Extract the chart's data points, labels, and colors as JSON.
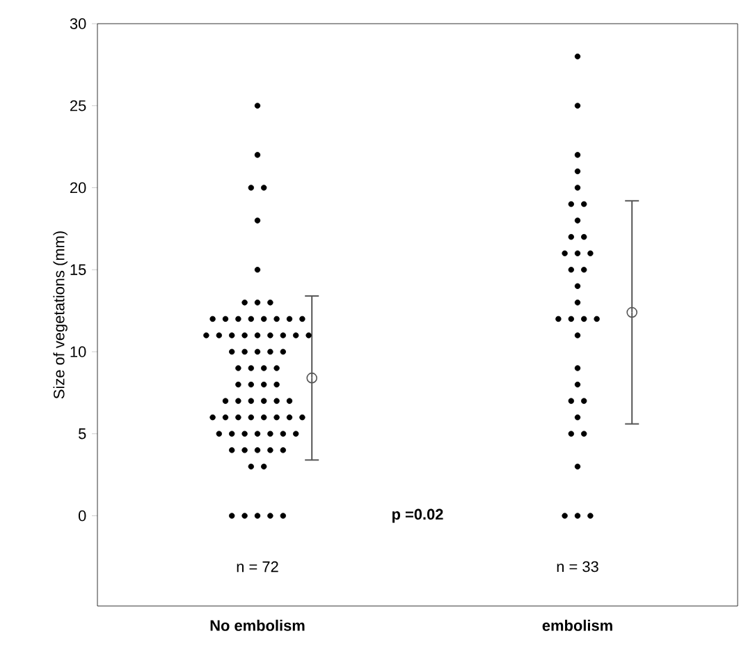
{
  "chart_data": {
    "type": "scatter",
    "ylabel": "Size of vegetations (mm)",
    "categories": [
      "No embolism",
      "embolism"
    ],
    "ylim": [
      -5.5,
      30
    ],
    "yticks": [
      0,
      5,
      10,
      15,
      20,
      25,
      30
    ],
    "grid": false,
    "marker": "circle",
    "annotations": [
      "p =0.02",
      "n = 72",
      "n = 33"
    ],
    "series": [
      {
        "color": "#000000",
        "x": [
          "No embolism",
          "No embolism",
          "No embolism",
          "No embolism",
          "No embolism",
          "No embolism",
          "No embolism",
          "No embolism",
          "No embolism",
          "No embolism",
          "No embolism",
          "No embolism",
          "No embolism",
          "No embolism",
          "No embolism",
          "No embolism",
          "No embolism",
          "No embolism",
          "No embolism",
          "No embolism",
          "No embolism",
          "No embolism",
          "No embolism",
          "No embolism",
          "No embolism",
          "No embolism",
          "No embolism",
          "No embolism",
          "No embolism",
          "No embolism",
          "No embolism",
          "No embolism",
          "No embolism",
          "No embolism",
          "No embolism",
          "No embolism",
          "No embolism",
          "No embolism",
          "No embolism",
          "No embolism",
          "No embolism",
          "No embolism",
          "No embolism",
          "No embolism",
          "No embolism",
          "No embolism",
          "No embolism",
          "No embolism",
          "No embolism",
          "No embolism",
          "No embolism",
          "No embolism",
          "No embolism",
          "No embolism",
          "No embolism",
          "No embolism",
          "No embolism",
          "No embolism",
          "No embolism",
          "No embolism",
          "No embolism",
          "No embolism",
          "No embolism",
          "No embolism",
          "No embolism",
          "No embolism",
          "No embolism",
          "No embolism",
          "No embolism",
          "No embolism",
          "No embolism",
          "No embolism"
        ],
        "values": [
          25,
          22,
          20,
          20,
          18,
          15,
          13,
          13,
          13,
          12,
          12,
          12,
          12,
          12,
          12,
          12,
          12,
          11,
          11,
          11,
          11,
          11,
          11,
          11,
          11,
          11,
          10,
          10,
          10,
          10,
          10,
          9,
          9,
          9,
          9,
          8,
          8,
          8,
          8,
          7,
          7,
          7,
          7,
          7,
          7,
          6,
          6,
          6,
          6,
          6,
          6,
          6,
          6,
          5,
          5,
          5,
          5,
          5,
          5,
          5,
          4,
          4,
          4,
          4,
          4,
          3,
          3,
          0,
          0,
          0,
          0,
          0
        ]
      },
      {
        "color": "#000000",
        "x": [
          "embolism",
          "embolism",
          "embolism",
          "embolism",
          "embolism",
          "embolism",
          "embolism",
          "embolism",
          "embolism",
          "embolism",
          "embolism",
          "embolism",
          "embolism",
          "embolism",
          "embolism",
          "embolism",
          "embolism",
          "embolism",
          "embolism",
          "embolism",
          "embolism",
          "embolism",
          "embolism",
          "embolism",
          "embolism",
          "embolism",
          "embolism",
          "embolism",
          "embolism",
          "embolism",
          "embolism",
          "embolism",
          "embolism"
        ],
        "values": [
          28,
          25,
          22,
          21,
          20,
          19,
          19,
          18,
          17,
          17,
          16,
          16,
          16,
          15,
          15,
          14,
          13,
          12,
          12,
          12,
          12,
          11,
          9,
          8,
          7,
          7,
          6,
          5,
          5,
          3,
          0,
          0,
          0
        ]
      },
      {
        "color": "#555555",
        "x": [
          "No embolism",
          "embolism"
        ],
        "values": [
          8.4,
          12.4
        ],
        "errors": [
          5.0,
          6.8
        ]
      }
    ]
  }
}
